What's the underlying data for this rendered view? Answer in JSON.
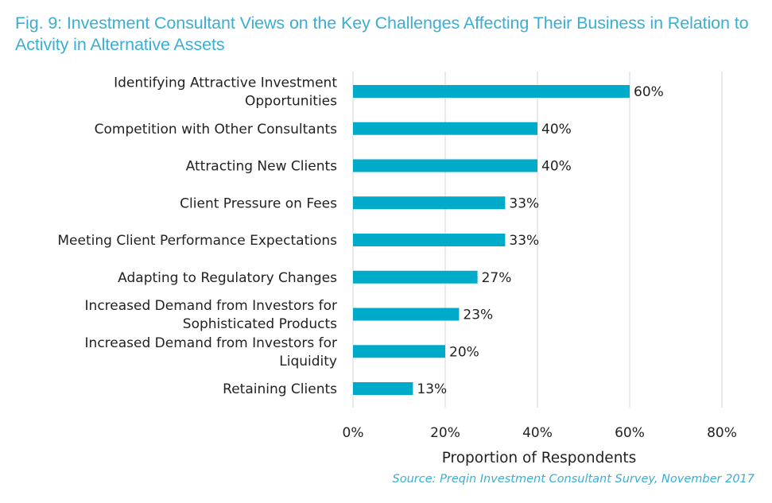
{
  "chart_data": {
    "type": "bar",
    "orientation": "horizontal",
    "title": "Fig. 9: Investment Consultant Views on the Key Challenges Affecting Their Business in Relation to Activity in Alternative Assets",
    "categories": [
      [
        "Identifying Attractive Investment",
        "Opportunities"
      ],
      [
        "Competition with Other Consultants"
      ],
      [
        "Attracting New Clients"
      ],
      [
        "Client Pressure on Fees"
      ],
      [
        "Meeting Client Performance Expectations"
      ],
      [
        "Adapting to Regulatory Changes"
      ],
      [
        "Increased Demand from Investors for",
        "Sophisticated Products"
      ],
      [
        "Increased Demand from Investors for",
        "Liquidity"
      ],
      [
        "Retaining Clients"
      ]
    ],
    "values": [
      60,
      40,
      40,
      33,
      33,
      27,
      23,
      20,
      13
    ],
    "value_labels": [
      "60%",
      "40%",
      "40%",
      "33%",
      "33%",
      "27%",
      "23%",
      "20%",
      "13%"
    ],
    "xlabel": "Proportion of Respondents",
    "ylabel": "",
    "xlim": [
      0,
      80
    ],
    "xticks": [
      0,
      20,
      40,
      60,
      80
    ],
    "xtick_labels": [
      "0%",
      "20%",
      "40%",
      "60%",
      "80%"
    ],
    "grid": "vertical",
    "legend": "none",
    "bar_color": "#00abc9",
    "source": "Source: Preqin Investment Consultant Survey, November 2017"
  }
}
